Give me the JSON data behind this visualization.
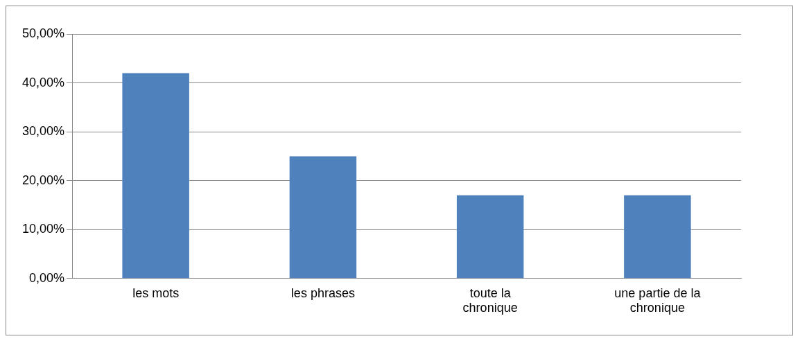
{
  "chart_data": {
    "type": "bar",
    "categories": [
      "les mots",
      "les phrases",
      "toute la chronique",
      "une partie de la chronique"
    ],
    "values": [
      42,
      25,
      17,
      17
    ],
    "color": "#4f81bd",
    "ylim": [
      0,
      50
    ],
    "yticks": [
      {
        "value": 0,
        "label": "0,00%"
      },
      {
        "value": 10,
        "label": "10,00%"
      },
      {
        "value": 20,
        "label": "20,00%"
      },
      {
        "value": 30,
        "label": "30,00%"
      },
      {
        "value": 40,
        "label": "40,00%"
      },
      {
        "value": 50,
        "label": "50,00%"
      }
    ],
    "grid": "y"
  }
}
